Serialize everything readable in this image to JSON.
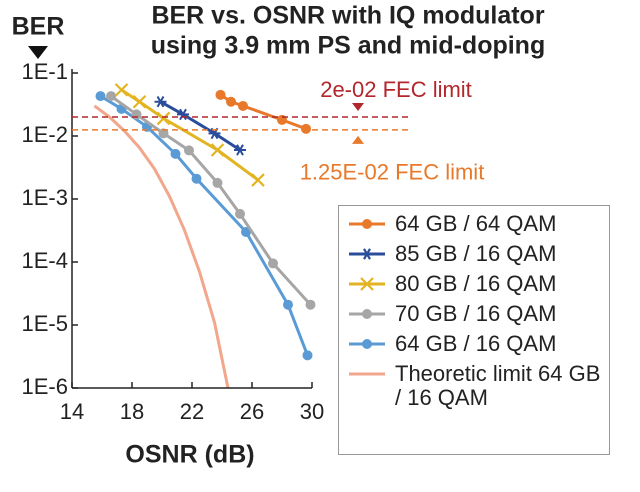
{
  "chart_data": {
    "type": "line",
    "title": [
      "BER vs. OSNR with IQ modulator",
      "using 3.9 mm PS and mid-doping"
    ],
    "ylabel": "BER",
    "xlabel": "OSNR (dB)",
    "xlim": [
      14,
      30
    ],
    "xticks": [
      14,
      18,
      22,
      26,
      30
    ],
    "ylim": [
      1e-06,
      0.1
    ],
    "log_y": true,
    "yticks": [
      {
        "value": 0.1,
        "label": "1E-1"
      },
      {
        "value": 0.01,
        "label": "1E-2"
      },
      {
        "value": 0.001,
        "label": "1E-3"
      },
      {
        "value": 0.0001,
        "label": "1E-4"
      },
      {
        "value": 1e-05,
        "label": "1E-5"
      },
      {
        "value": 1e-06,
        "label": "1E-6"
      }
    ],
    "reference_lines": [
      {
        "value": 0.02,
        "label": "2e-02 FEC limit",
        "color": "#b3262b"
      },
      {
        "value": 0.0125,
        "label": "1.25E-02 FEC limit",
        "color": "#e8792b"
      }
    ],
    "series": [
      {
        "name": "64 GB / 64 QAM",
        "color": "#e8792b",
        "marker": "circle",
        "x": [
          23.9,
          24.6,
          25.4,
          28.0,
          29.6
        ],
        "values": [
          0.045,
          0.035,
          0.03,
          0.018,
          0.013
        ]
      },
      {
        "name": "85 GB / 16 QAM",
        "color": "#2a4d9b",
        "marker": "star",
        "x": [
          19.9,
          21.4,
          23.5,
          25.2
        ],
        "values": [
          0.035,
          0.022,
          0.011,
          0.006
        ]
      },
      {
        "name": "80 GB / 16 QAM",
        "color": "#e3b422",
        "marker": "x",
        "x": [
          17.3,
          18.5,
          20.1,
          23.7,
          26.4
        ],
        "values": [
          0.054,
          0.035,
          0.019,
          0.006,
          0.002
        ]
      },
      {
        "name": "70 GB / 16 QAM",
        "color": "#a6a6a6",
        "marker": "circle",
        "x": [
          16.6,
          18.3,
          20.1,
          21.8,
          23.7,
          25.2,
          27.4,
          29.9
        ],
        "values": [
          0.043,
          0.022,
          0.011,
          0.0059,
          0.0018,
          0.00058,
          9.5e-05,
          2.1e-05
        ]
      },
      {
        "name": "64 GB / 16 QAM",
        "color": "#5b9bd5",
        "marker": "circle",
        "x": [
          15.9,
          17.3,
          19.0,
          20.9,
          22.3,
          25.6,
          28.4,
          29.7
        ],
        "values": [
          0.043,
          0.027,
          0.014,
          0.0052,
          0.0021,
          0.0003,
          2.1e-05,
          3.3e-06
        ]
      },
      {
        "name": "Theoretic limit 64 GB / 16 QAM",
        "color": "#f2a68c",
        "marker": "none",
        "x": [
          15.5,
          16.5,
          17.5,
          18.5,
          19.5,
          20.5,
          21.5,
          22.5,
          23.5,
          24.4
        ],
        "values": [
          0.03,
          0.02,
          0.012,
          0.0065,
          0.003,
          0.0011,
          0.00032,
          7e-05,
          1.1e-05,
          1e-06
        ]
      }
    ]
  }
}
